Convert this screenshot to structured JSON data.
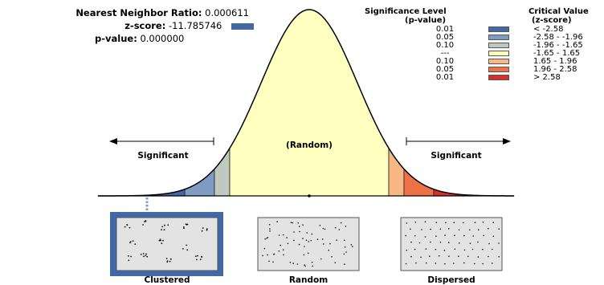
{
  "stats": {
    "nnr_label": "Nearest Neighbor Ratio:",
    "nnr_value": "0.000611",
    "z_label": "z-score:",
    "z_value": "-11.785746",
    "p_label": "p-value:",
    "p_value": "0.000000",
    "zscore_marker_color": "#4169a8"
  },
  "legend": {
    "sig_title": "Significance Level",
    "sig_sub": "(p-value)",
    "crit_title": "Critical Value",
    "crit_sub": "(z-score)",
    "rows": [
      {
        "p": "0.01",
        "z": "< -2.58",
        "color": "#4169a8"
      },
      {
        "p": "0.05",
        "z": "-2.58 - -1.96",
        "color": "#7f9bc4"
      },
      {
        "p": "0.10",
        "z": "-1.96 - -1.65",
        "color": "#bfc9bf"
      },
      {
        "p": "---",
        "z": "-1.65 - 1.65",
        "color": "#ffffbf"
      },
      {
        "p": "0.10",
        "z": "1.65 - 1.96",
        "color": "#f8b886"
      },
      {
        "p": "0.05",
        "z": "1.96 - 2.58",
        "color": "#ef7148"
      },
      {
        "p": "0.01",
        "z": "> 2.58",
        "color": "#d7302a"
      }
    ]
  },
  "curve": {
    "left_label": "Significant",
    "center_label": "(Random)",
    "right_label": "Significant"
  },
  "panels": [
    {
      "label": "Clustered",
      "selected": true
    },
    {
      "label": "Random",
      "selected": false
    },
    {
      "label": "Dispersed",
      "selected": false
    }
  ]
}
